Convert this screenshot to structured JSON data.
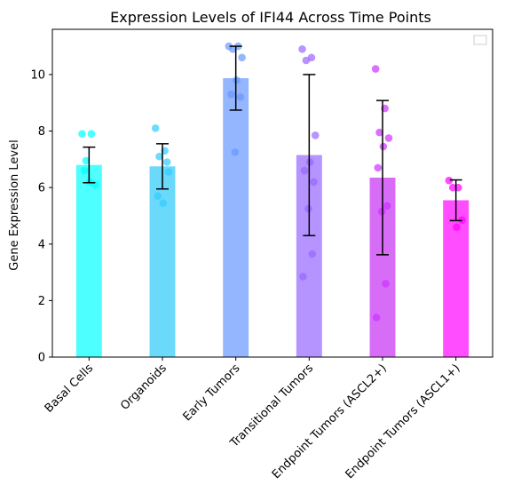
{
  "chart_data": {
    "type": "bar",
    "title": "Expression Levels of IFI44 Across Time Points",
    "xlabel": "",
    "ylabel": "Gene Expression Level",
    "ylim": [
      0,
      11.6
    ],
    "yticks": [
      0,
      2,
      4,
      6,
      8,
      10
    ],
    "grid": false,
    "legend": {
      "placement": "top-right",
      "entries": []
    },
    "categories": [
      "Basal Cells",
      "Organoids",
      "Early Tumors",
      "Transitional Tumors",
      "Endpoint Tumors (ASCL2+)",
      "Endpoint Tumors (ASCL1+)"
    ],
    "values": [
      6.8,
      6.75,
      9.87,
      7.15,
      6.35,
      5.55
    ],
    "error": [
      0.63,
      0.8,
      1.13,
      2.85,
      2.73,
      0.72
    ],
    "bar_colors": [
      "#4dffff",
      "#6bd9fa",
      "#94b6ff",
      "#b594ff",
      "#d76df7",
      "#ff4dff"
    ],
    "point_colors": [
      "#00ffff",
      "#33ccff",
      "#6699ff",
      "#9966ff",
      "#cc33ff",
      "#ff00ff"
    ],
    "points": [
      [
        7.9,
        7.9,
        6.95,
        6.1,
        6.2,
        6.6
      ],
      [
        8.1,
        7.3,
        7.1,
        6.55,
        5.45,
        5.7,
        6.9
      ],
      [
        11.0,
        11.0,
        10.9,
        10.6,
        9.8,
        9.3,
        9.2,
        7.25
      ],
      [
        10.9,
        10.6,
        10.5,
        7.85,
        6.9,
        6.6,
        6.2,
        5.25,
        3.65,
        2.85
      ],
      [
        10.2,
        8.8,
        7.95,
        7.75,
        7.45,
        6.7,
        5.35,
        5.15,
        2.6,
        1.4
      ],
      [
        6.25,
        6.0,
        6.0,
        4.85,
        4.6
      ]
    ]
  }
}
